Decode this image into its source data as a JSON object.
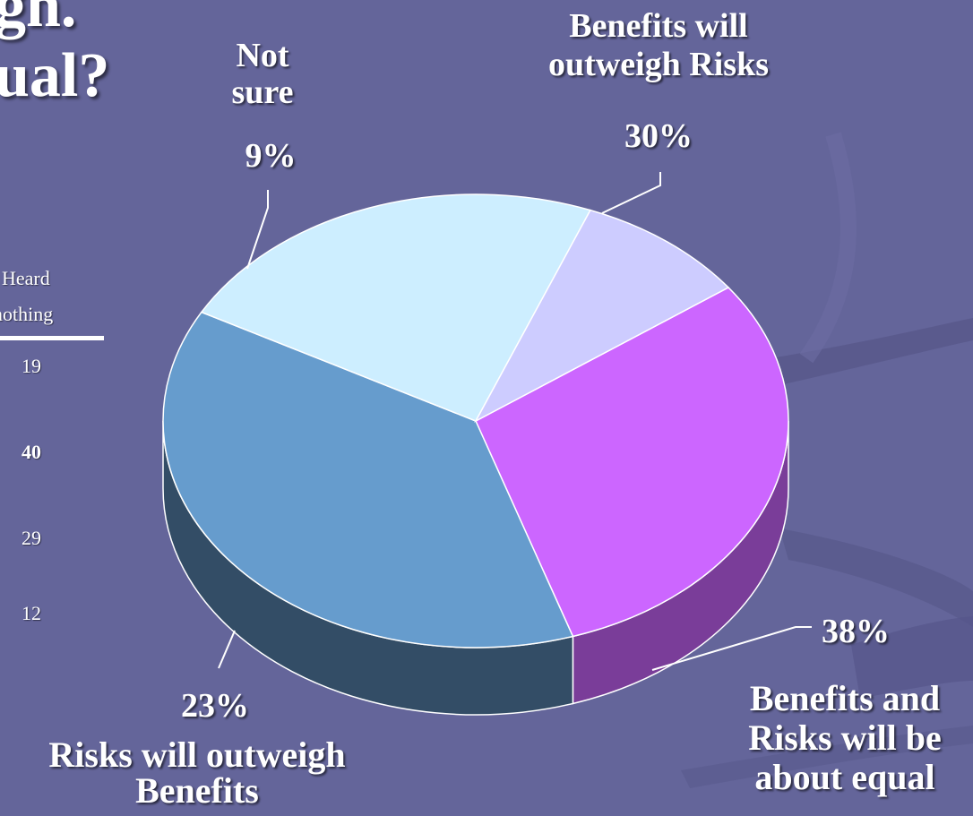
{
  "title_fragments": [
    "gh.",
    "ual?"
  ],
  "table_fragment": {
    "header_line1": "Heard",
    "header_line2": "nothing",
    "values": [
      "19",
      "40",
      "29",
      "12"
    ]
  },
  "chart_data": {
    "type": "pie",
    "title": "",
    "slices": [
      {
        "label": "Benefits will outweigh Risks",
        "value": 30,
        "pct_label": "30%",
        "color": "#cc66ff",
        "side_color": "#7a3d99"
      },
      {
        "label": "Benefits and Risks will be about equal",
        "value": 38,
        "pct_label": "38%",
        "color": "#669ccd",
        "side_color": "#334d66"
      },
      {
        "label": "Risks will outweigh Benefits",
        "value": 23,
        "pct_label": "23%",
        "color": "#cdeeff",
        "side_color": "#66777f"
      },
      {
        "label": "Not sure",
        "value": 9,
        "pct_label": "9%",
        "color": "#cdccff",
        "side_color": "#66667f"
      }
    ],
    "legend": "none"
  },
  "labels": {
    "not_sure_line1": "Not",
    "not_sure_line2": "sure",
    "benefits_line1": "Benefits will",
    "benefits_line2": "outweigh Risks",
    "equal_line1": "Benefits and",
    "equal_line2": "Risks will be",
    "equal_line3": "about equal",
    "risks_line1": "Risks will outweigh",
    "risks_line2": "Benefits"
  }
}
